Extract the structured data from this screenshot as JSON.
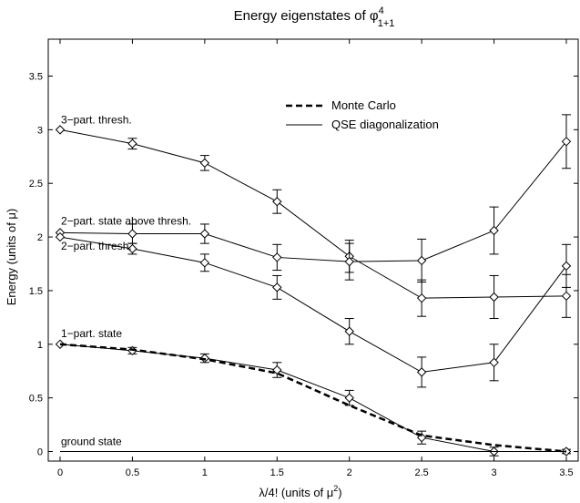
{
  "chart_data": {
    "type": "line",
    "title": "Energy eigenstates of φ",
    "title_sup": "4",
    "title_sub": "1+1",
    "xlabel": "λ/4! (units of μ",
    "xlabel_sup": "2",
    "xlabel_tail": ")",
    "ylabel": "Energy (units of μ)",
    "xlim": [
      0,
      3.5
    ],
    "ylim": [
      -0.05,
      3.9
    ],
    "x_ticks": [
      "0",
      "0.5",
      "1",
      "1.5",
      "2",
      "2.5",
      "3",
      "3.5"
    ],
    "y_ticks": [
      "0",
      "0.5",
      "1",
      "1.5",
      "2",
      "2.5",
      "3",
      "3.5"
    ],
    "legend_position": "top-right",
    "legend": [
      {
        "label": "Monte Carlo",
        "style": "dashed"
      },
      {
        "label": "QSE diagonalization",
        "style": "solid"
      }
    ],
    "annotations": [
      {
        "text": "3−part. thresh.",
        "x": 0,
        "y": 3.0
      },
      {
        "text": "2−part. state above thresh.",
        "x": 0,
        "y": 2.04
      },
      {
        "text": "2−part. thresh.",
        "x": 0,
        "y": 2.0
      },
      {
        "text": "1−part. state",
        "x": 0,
        "y": 1.0
      },
      {
        "text": "ground state",
        "x": 0,
        "y": 0.0
      }
    ],
    "series": [
      {
        "style": "solid",
        "marker": "diamond",
        "x": [
          0,
          0.5,
          1,
          1.5,
          2,
          2.5,
          3,
          3.5
        ],
        "y": [
          3.0,
          2.87,
          2.69,
          2.33,
          1.82,
          1.43,
          1.44,
          1.45
        ],
        "err": [
          0,
          0.05,
          0.07,
          0.11,
          0.15,
          0.17,
          0.2,
          0.2
        ]
      },
      {
        "style": "solid",
        "marker": "diamond",
        "x": [
          0,
          0.5,
          1,
          1.5,
          2,
          2.5,
          3,
          3.5
        ],
        "y": [
          2.04,
          2.03,
          2.03,
          1.81,
          1.77,
          1.78,
          2.06,
          2.89
        ],
        "err": [
          0,
          0.09,
          0.09,
          0.12,
          0.17,
          0.2,
          0.22,
          0.25
        ]
      },
      {
        "style": "solid",
        "marker": "diamond",
        "x": [
          0,
          0.5,
          1,
          1.5,
          2,
          2.5,
          3,
          3.5
        ],
        "y": [
          2.0,
          1.89,
          1.76,
          1.53,
          1.12,
          0.74,
          0.83,
          1.73
        ],
        "err": [
          0,
          0.05,
          0.08,
          0.11,
          0.12,
          0.14,
          0.17,
          0.2
        ]
      },
      {
        "style": "solid",
        "marker": "diamond",
        "x": [
          0,
          0.5,
          1,
          1.5,
          2,
          2.5,
          3,
          3.5
        ],
        "y": [
          1.0,
          0.94,
          0.87,
          0.76,
          0.5,
          0.13,
          0.0,
          0.0
        ],
        "err": [
          0,
          0.03,
          0.04,
          0.07,
          0.07,
          0.06,
          0.04,
          0.02
        ]
      },
      {
        "style": "solid",
        "marker": "none",
        "x": [
          0,
          3.5
        ],
        "y": [
          0,
          0
        ],
        "err": [
          0,
          0
        ]
      },
      {
        "style": "dashed",
        "marker": "none",
        "x": [
          0,
          0.5,
          1,
          1.5,
          2,
          2.5,
          3,
          3.5
        ],
        "y": [
          1.0,
          0.95,
          0.86,
          0.73,
          0.43,
          0.15,
          0.06,
          0.0
        ],
        "err": [
          0,
          0,
          0,
          0,
          0,
          0,
          0,
          0
        ]
      }
    ]
  }
}
